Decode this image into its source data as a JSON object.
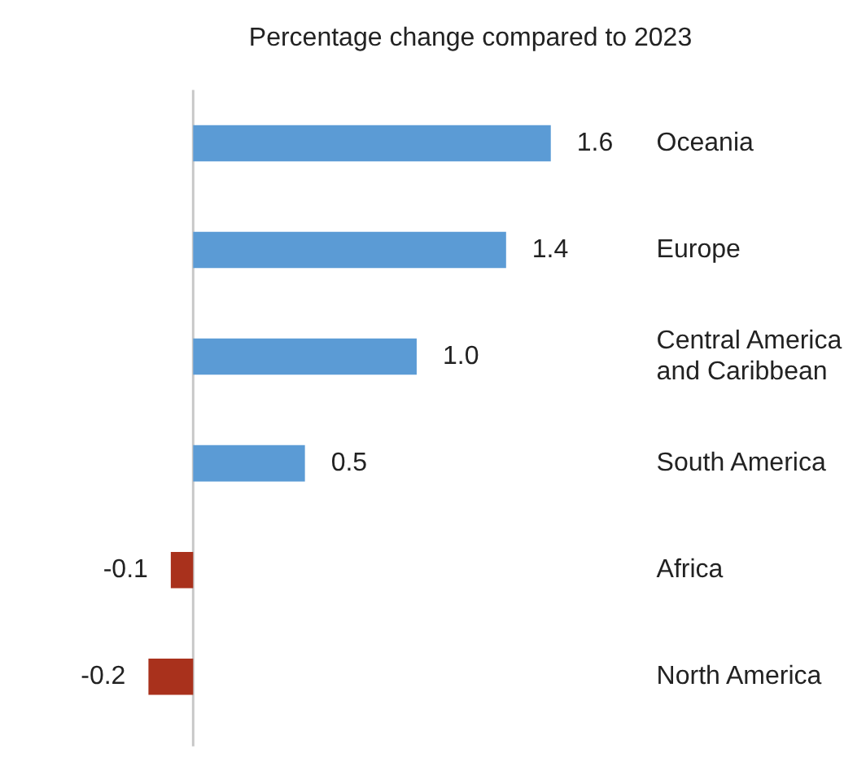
{
  "chart_data": {
    "type": "bar",
    "orientation": "horizontal",
    "title": "Percentage change compared to 2023",
    "categories": [
      "Oceania",
      "Europe",
      "Central America and Caribbean",
      "South America",
      "Africa",
      "North America"
    ],
    "values": [
      1.6,
      1.4,
      1.0,
      0.5,
      -0.1,
      -0.2
    ],
    "colors": [
      "#5b9bd5",
      "#5b9bd5",
      "#5b9bd5",
      "#5b9bd5",
      "#a9311c",
      "#a9311c"
    ],
    "value_labels": [
      "1.6",
      "1.4",
      "1.0",
      "0.5",
      "-0.1",
      "-0.2"
    ],
    "grid": false,
    "legend": false
  }
}
